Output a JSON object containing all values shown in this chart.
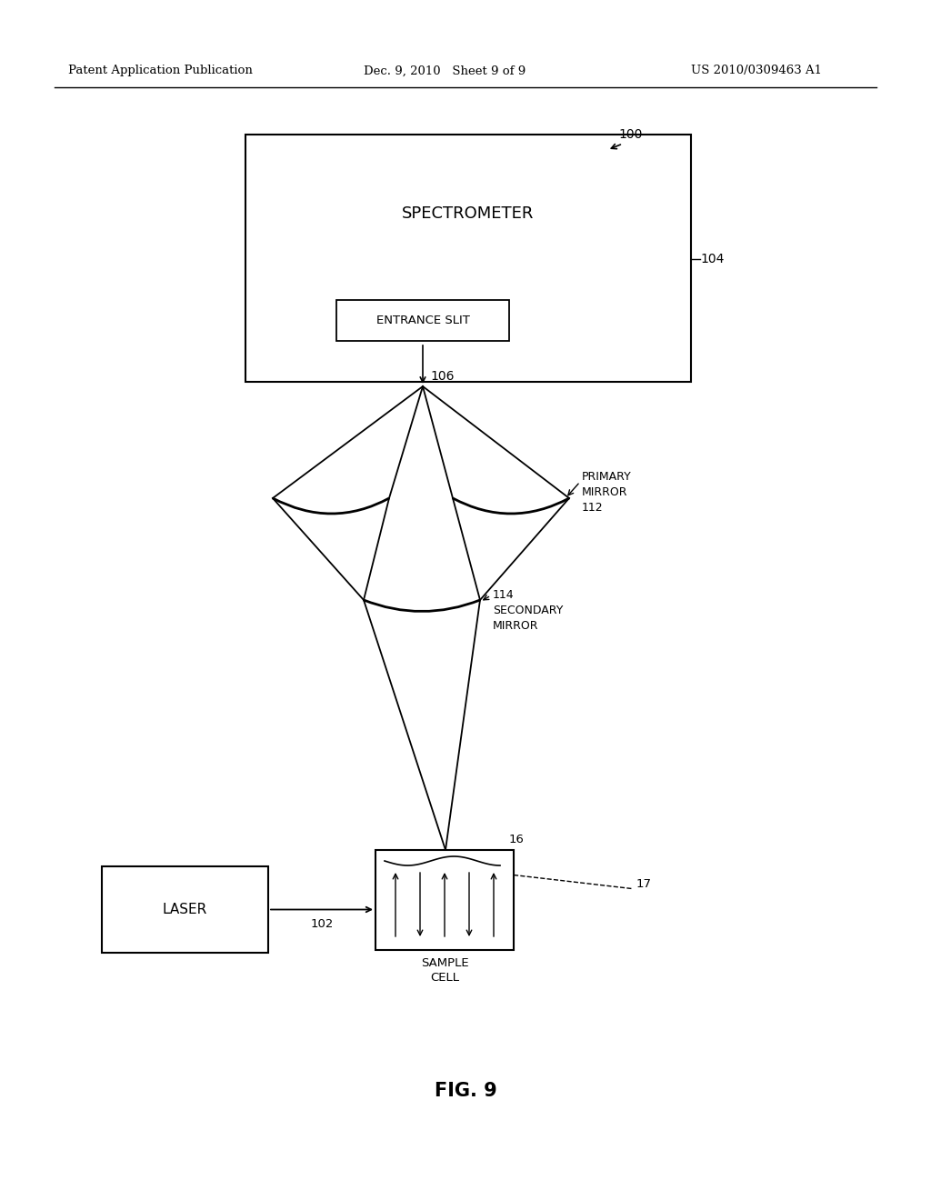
{
  "bg_color": "#ffffff",
  "header_left": "Patent Application Publication",
  "header_mid": "Dec. 9, 2010   Sheet 9 of 9",
  "header_right": "US 2010/0309463 A1",
  "fig_label": "FIG. 9",
  "spectrometer_label": "SPECTROMETER",
  "entrance_slit_label": "ENTRANCE SLIT",
  "laser_label": "LASER",
  "sample_cell_label": "SAMPLE\nCELL",
  "ref_100": "100",
  "ref_104": "104",
  "ref_106": "106",
  "ref_102": "102",
  "ref_16": "16",
  "ref_17": "17",
  "primary_mirror_label": "PRIMARY\nMIRROR\n112",
  "secondary_mirror_label": "114\nSECONDARY\nMIRROR"
}
